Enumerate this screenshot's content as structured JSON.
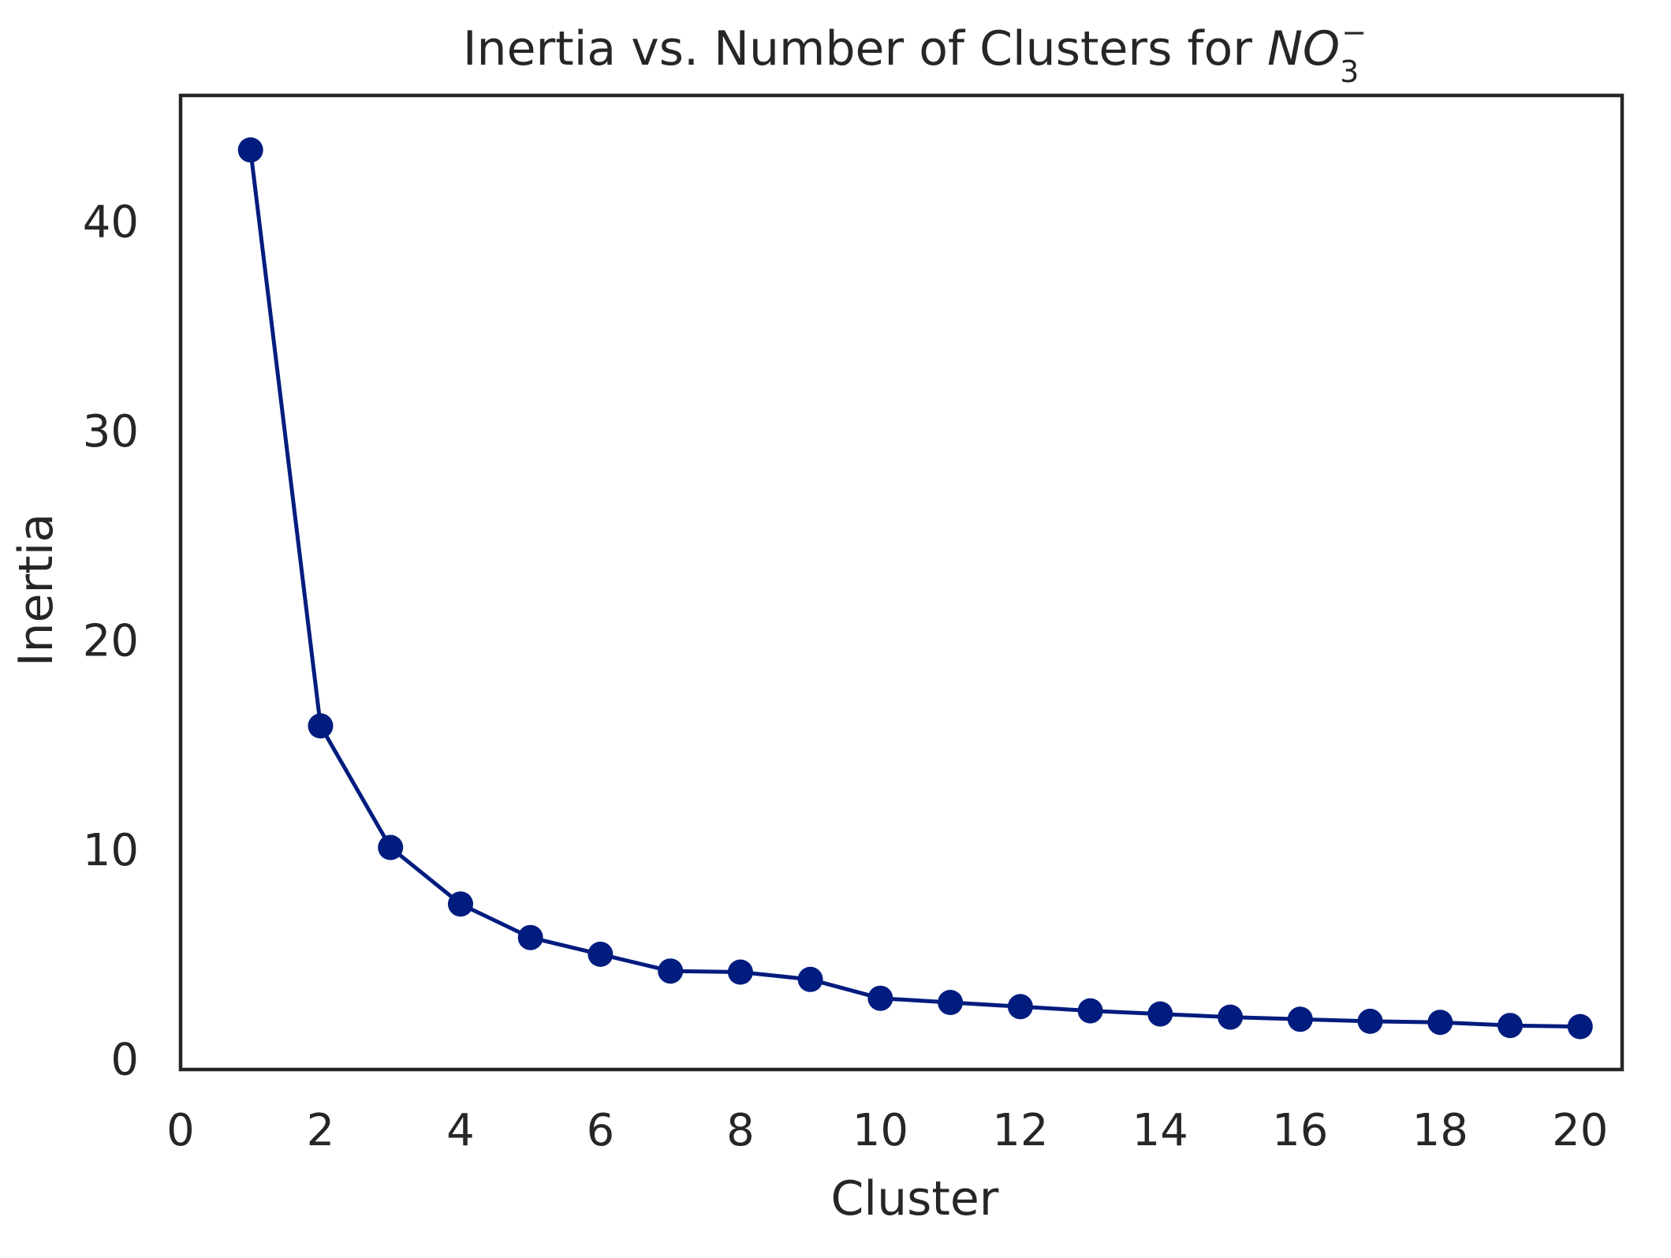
{
  "chart_data": {
    "type": "line",
    "title": {
      "text": "Inertia vs. Number of Clusters for ",
      "math_base": "NO",
      "math_subscript": "3",
      "math_superscript": "−"
    },
    "xlabel": "Cluster",
    "ylabel": "Inertia",
    "xlim": [
      0,
      20.6
    ],
    "ylim": [
      -0.5,
      46
    ],
    "xticks": [
      0,
      2,
      4,
      6,
      8,
      10,
      12,
      14,
      16,
      18,
      20
    ],
    "xtick_labels": [
      "0",
      "2",
      "4",
      "6",
      "8",
      "10",
      "12",
      "14",
      "16",
      "18",
      "20"
    ],
    "yticks": [
      0,
      10,
      20,
      30,
      40
    ],
    "ytick_labels": [
      "0",
      "10",
      "20",
      "30",
      "40"
    ],
    "grid": false,
    "legend": "none",
    "series": [
      {
        "color": "#001c7f",
        "marker": "circle",
        "x": [
          1,
          2,
          3,
          4,
          5,
          6,
          7,
          8,
          9,
          10,
          11,
          12,
          13,
          14,
          15,
          16,
          17,
          18,
          19,
          20
        ],
        "values": [
          43.4,
          15.9,
          10.1,
          7.4,
          5.8,
          5.0,
          4.2,
          4.15,
          3.8,
          2.9,
          2.7,
          2.5,
          2.3,
          2.15,
          2.0,
          1.9,
          1.8,
          1.75,
          1.6,
          1.55
        ]
      }
    ]
  }
}
